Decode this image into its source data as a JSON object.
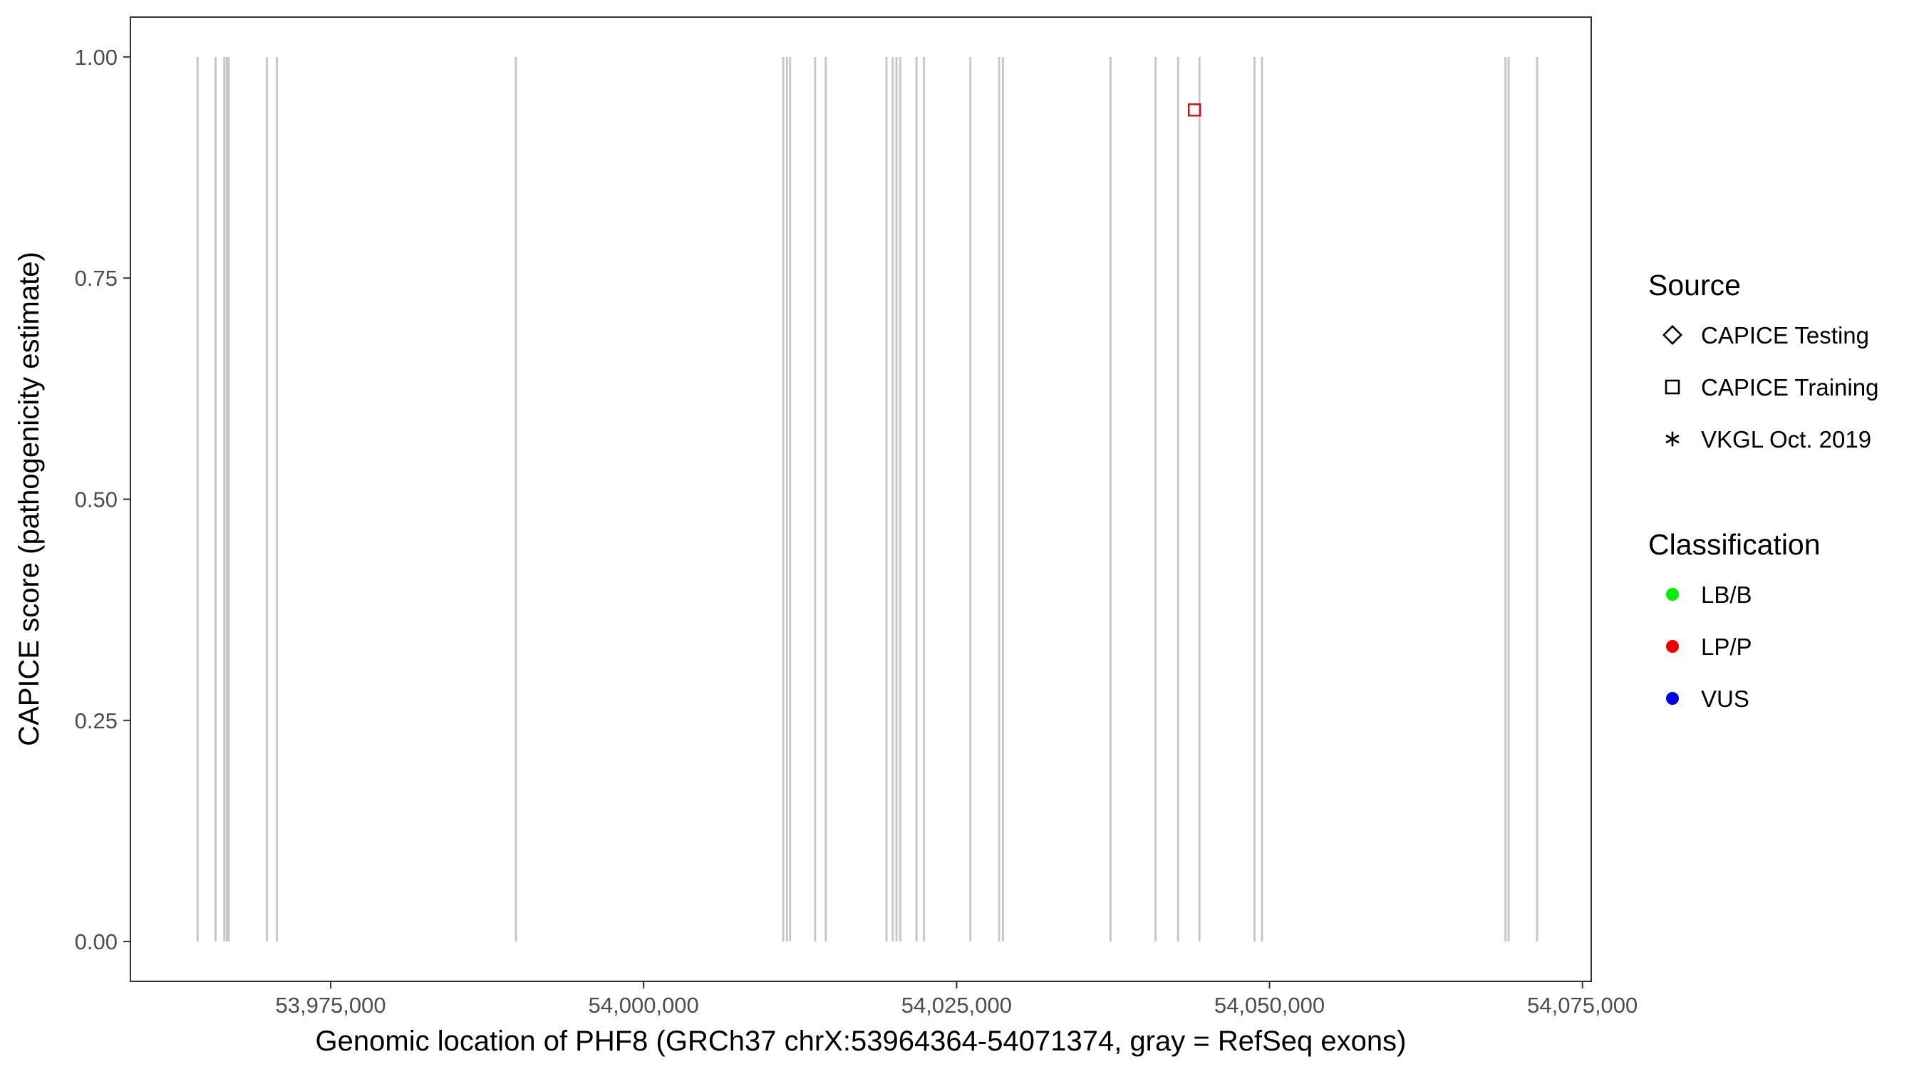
{
  "chart_data": {
    "type": "scatter",
    "title": "",
    "xlabel": "Genomic location of PHF8 (GRCh37 chrX:53964364-54071374, gray = RefSeq exons)",
    "ylabel": "CAPICE score (pathogenicity estimate)",
    "xlim": [
      53959000,
      54075700
    ],
    "ylim": [
      -0.045,
      1.045
    ],
    "x_ticks": [
      53975000,
      54000000,
      54025000,
      54050000,
      54075000
    ],
    "x_tick_labels": [
      "53,975,000",
      "54,000,000",
      "54,025,000",
      "54,050,000",
      "54,075,000"
    ],
    "y_ticks": [
      0,
      0.25,
      0.5,
      0.75,
      1.0
    ],
    "y_tick_labels": [
      "0.00",
      "0.25",
      "0.50",
      "0.75",
      "1.00"
    ],
    "grid": false,
    "exon_color": "#c8c8c8",
    "exons": [
      53964364,
      53965800,
      53966500,
      53966700,
      53966850,
      53969900,
      53970700,
      53989800,
      54011150,
      54011450,
      54011700,
      54013700,
      54014550,
      54019400,
      54019900,
      54020200,
      54020500,
      54021800,
      54022400,
      54026100,
      54028400,
      54028700,
      54037300,
      54040900,
      54042700,
      54044400,
      54048800,
      54049400,
      54068850,
      54069100,
      54071374
    ],
    "legend_position": "right",
    "legend": {
      "source_title": "Source",
      "source_entries": [
        {
          "label": "CAPICE Testing",
          "shape": "diamond"
        },
        {
          "label": "CAPICE Training",
          "shape": "square"
        },
        {
          "label": "VKGL Oct. 2019",
          "shape": "asterisk"
        }
      ],
      "class_title": "Classification",
      "class_entries": [
        {
          "label": "LB/B",
          "color": "#00ee00"
        },
        {
          "label": "LP/P",
          "color": "#ee0000"
        },
        {
          "label": "VUS",
          "color": "#0000ee"
        }
      ]
    },
    "points": [
      {
        "x": 54044000,
        "y": 0.94,
        "source": "CAPICE Training",
        "class": "LP/P"
      },
      {
        "x": 54044000,
        "y": 0.94,
        "source": "CAPICE Training",
        "class": "LP/P"
      }
    ]
  }
}
